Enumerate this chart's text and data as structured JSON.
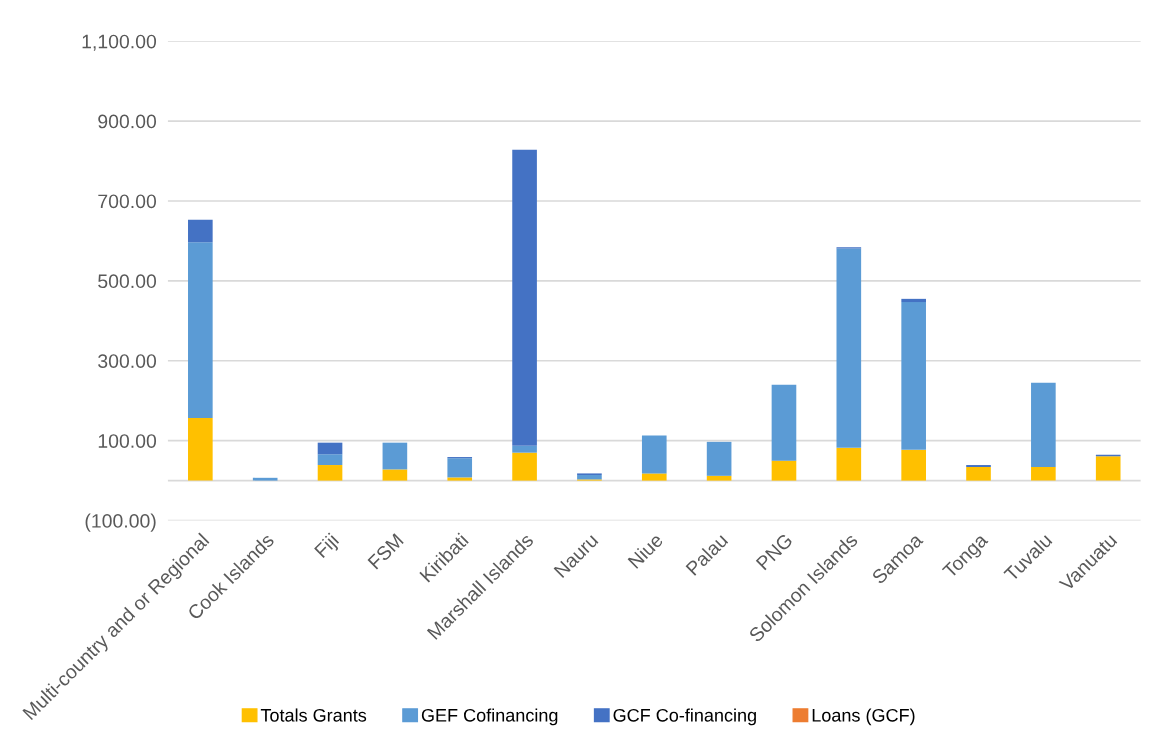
{
  "chart_data": {
    "type": "bar",
    "stacked": true,
    "categories": [
      "Multi-country and or Regional",
      "Cook Islands",
      "Fiji",
      "FSM",
      "Kiribati",
      "Marshall Islands",
      "Nauru",
      "Niue",
      "Palau",
      "PNG",
      "Solomon Islands",
      "Samoa",
      "Tonga",
      "Tuvalu",
      "Vanuatu"
    ],
    "series": [
      {
        "name": "Totals Grants",
        "color": "#ffc000",
        "values": [
          157,
          null,
          39,
          28,
          8,
          70,
          3,
          18,
          12,
          50,
          82,
          77,
          34,
          34,
          61
        ]
      },
      {
        "name": "GEF Cofinancing",
        "color": "#5b9bd5",
        "values": [
          440,
          7,
          27,
          67,
          48,
          17,
          11,
          95,
          85,
          190,
          499,
          370,
          0,
          211,
          0
        ]
      },
      {
        "name": "GCF Co-financing",
        "color": "#4472c4",
        "values": [
          56,
          0,
          29,
          0,
          3,
          741,
          4,
          0,
          0,
          0,
          3,
          8,
          5,
          0,
          4
        ]
      },
      {
        "name": "Loans (GCF)",
        "color": "#ed7d31",
        "values": [
          0,
          0,
          0,
          0,
          0,
          0,
          0,
          0,
          0,
          0,
          0,
          0,
          0,
          0,
          0
        ]
      }
    ],
    "ylim": [
      -100,
      1100
    ],
    "yticks": [
      {
        "value": -100,
        "label": "(100.00)"
      },
      {
        "value": 100,
        "label": "100.00"
      },
      {
        "value": 300,
        "label": "300.00"
      },
      {
        "value": 500,
        "label": "500.00"
      },
      {
        "value": 700,
        "label": "700.00"
      },
      {
        "value": 900,
        "label": "900.00"
      },
      {
        "value": 1100,
        "label": "1,100.00"
      }
    ],
    "grid": "y",
    "legend": "bottom"
  }
}
